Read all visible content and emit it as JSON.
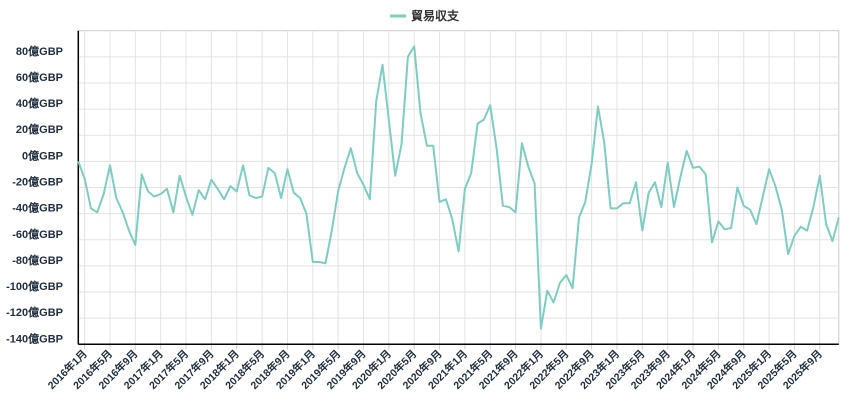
{
  "chart_data": {
    "type": "line",
    "title": "",
    "xlabel": "",
    "ylabel": "",
    "legend": {
      "position": "top-center",
      "entries": [
        "貿易収支"
      ]
    },
    "grid": true,
    "ylim": [
      -140,
      100
    ],
    "yticks": [
      80,
      60,
      40,
      20,
      0,
      -20,
      -40,
      -60,
      -80,
      -100,
      -120,
      -140
    ],
    "ytick_labels": [
      "80億GBP",
      "60億GBP",
      "40億GBP",
      "20億GBP",
      "0億GBP",
      "-20億GBP",
      "-40億GBP",
      "-60億GBP",
      "-80億GBP",
      "-100億GBP",
      "-120億GBP",
      "-140億GBP"
    ],
    "xtick_labels": [
      "2016年1月",
      "2016年5月",
      "2016年9月",
      "2017年1月",
      "2017年5月",
      "2017年9月",
      "2018年1月",
      "2018年5月",
      "2018年9月",
      "2019年1月",
      "2019年5月",
      "2019年9月",
      "2020年1月",
      "2020年5月",
      "2020年9月",
      "2021年1月",
      "2021年5月",
      "2021年9月",
      "2022年1月",
      "2022年5月",
      "2022年9月",
      "2023年1月",
      "2023年5月",
      "2023年9月",
      "2024年1月",
      "2024年5月",
      "2024年9月",
      "2025年1月",
      "2025年5月",
      "2025年9月"
    ],
    "categories": [
      "2015年12月",
      "2016年1月",
      "2016年2月",
      "2016年3月",
      "2016年4月",
      "2016年5月",
      "2016年6月",
      "2016年7月",
      "2016年8月",
      "2016年9月",
      "2016年10月",
      "2016年11月",
      "2016年12月",
      "2017年1月",
      "2017年2月",
      "2017年3月",
      "2017年4月",
      "2017年5月",
      "2017年6月",
      "2017年7月",
      "2017年8月",
      "2017年9月",
      "2017年10月",
      "2017年11月",
      "2017年12月",
      "2018年1月",
      "2018年2月",
      "2018年3月",
      "2018年4月",
      "2018年5月",
      "2018年6月",
      "2018年7月",
      "2018年8月",
      "2018年9月",
      "2018年10月",
      "2018年11月",
      "2018年12月",
      "2019年1月",
      "2019年2月",
      "2019年3月",
      "2019年4月",
      "2019年5月",
      "2019年6月",
      "2019年7月",
      "2019年8月",
      "2019年9月",
      "2019年10月",
      "2019年11月",
      "2019年12月",
      "2020年1月",
      "2020年2月",
      "2020年3月",
      "2020年4月",
      "2020年5月",
      "2020年6月",
      "2020年7月",
      "2020年8月",
      "2020年9月",
      "2020年10月",
      "2020年11月",
      "2020年12月",
      "2021年1月",
      "2021年2月",
      "2021年3月",
      "2021年4月",
      "2021年5月",
      "2021年6月",
      "2021年7月",
      "2021年8月",
      "2021年9月",
      "2021年10月",
      "2021年11月",
      "2021年12月",
      "2022年1月",
      "2022年2月",
      "2022年3月",
      "2022年4月",
      "2022年5月",
      "2022年6月",
      "2022年7月",
      "2022年8月",
      "2022年9月",
      "2022年10月",
      "2022年11月",
      "2022年12月",
      "2023年1月",
      "2023年2月",
      "2023年3月",
      "2023年4月",
      "2023年5月",
      "2023年6月",
      "2023年7月",
      "2023年8月",
      "2023年9月",
      "2023年10月",
      "2023年11月",
      "2023年12月",
      "2024年1月",
      "2024年2月",
      "2024年3月",
      "2024年4月",
      "2024年5月",
      "2024年6月",
      "2024年7月",
      "2024年8月",
      "2024年9月",
      "2024年10月",
      "2024年11月",
      "2024年12月",
      "2025年1月",
      "2025年2月",
      "2025年3月",
      "2025年4月",
      "2025年5月",
      "2025年6月",
      "2025年7月",
      "2025年8月",
      "2025年9月",
      "2025年10月",
      "2025年11月",
      "2025年12月"
    ],
    "series": [
      {
        "name": "貿易収支",
        "color": "#7ecdc2",
        "values": [
          0,
          -13,
          -36,
          -39,
          -25,
          -3,
          -28,
          -39,
          -53,
          -64,
          -10,
          -23,
          -27,
          -25,
          -21,
          -39,
          -11,
          -27,
          -41,
          -22,
          -29,
          -14,
          -21,
          -29,
          -19,
          -23,
          -3,
          -26,
          -28,
          -27,
          -5,
          -9,
          -28,
          -6,
          -24,
          -28,
          -40,
          -77,
          -77,
          -78,
          -53,
          -23,
          -5,
          10,
          -9,
          -18,
          -29,
          46,
          74,
          32,
          -11,
          13,
          80,
          88,
          37,
          12,
          12,
          -31,
          -29,
          -44,
          -69,
          -21,
          -9,
          29,
          32,
          43,
          10,
          -34,
          -35,
          -39,
          14,
          -4,
          -17,
          -128,
          -99,
          -108,
          -93,
          -87,
          -97,
          -43,
          -31,
          -2,
          42,
          14,
          -36,
          -36,
          -32,
          -32,
          -16,
          -53,
          -24,
          -16,
          -35,
          -1,
          -35,
          -12,
          8,
          -5,
          -4,
          -10,
          -62,
          -46,
          -52,
          -51,
          -20,
          -34,
          -37,
          -48,
          -27,
          -6,
          -19,
          -37,
          -71,
          -57,
          -50,
          -53,
          -35,
          -11,
          -48,
          -61,
          -43
        ]
      }
    ]
  }
}
